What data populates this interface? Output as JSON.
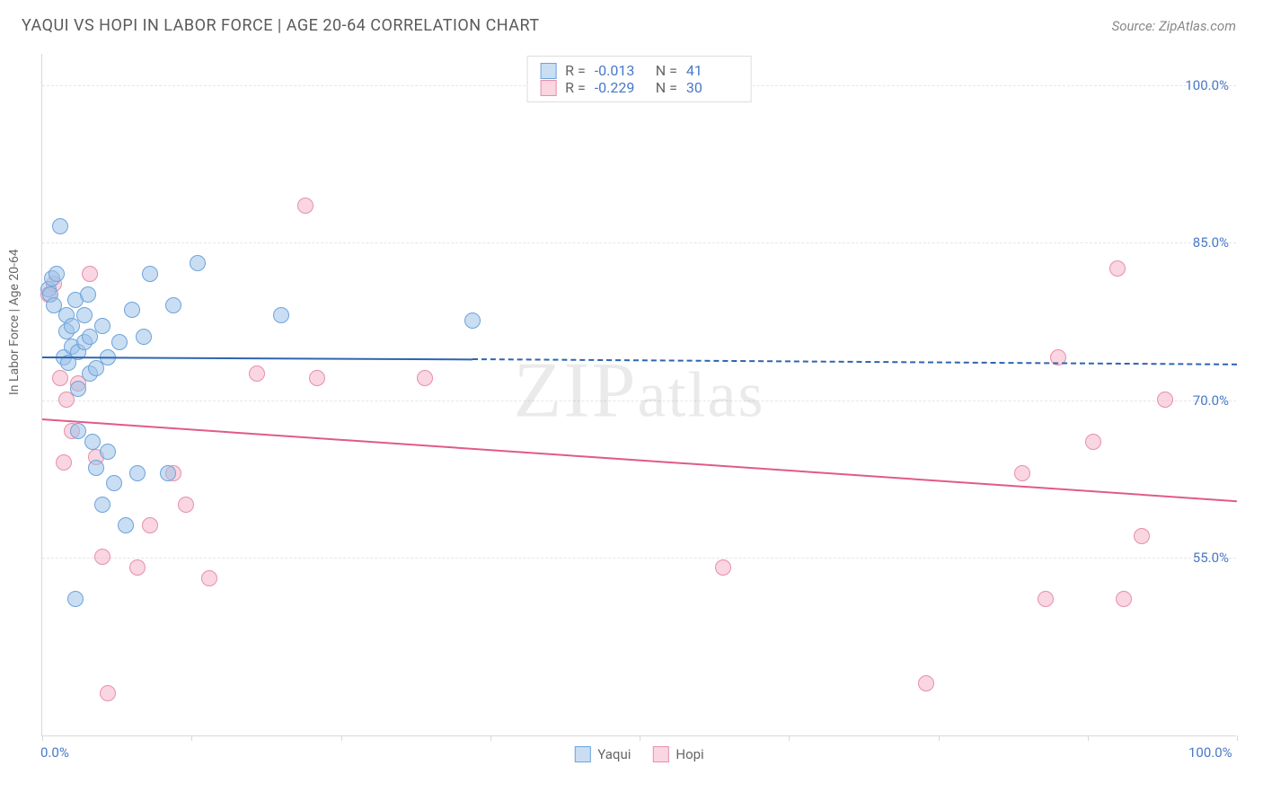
{
  "header": {
    "title": "YAQUI VS HOPI IN LABOR FORCE | AGE 20-64 CORRELATION CHART",
    "source": "Source: ZipAtlas.com"
  },
  "chart": {
    "type": "scatter",
    "ylabel": "In Labor Force | Age 20-64",
    "watermark": "ZIPatlas",
    "background_color": "#ffffff",
    "grid_color": "#e6e6e6",
    "axis_color": "#d8d8d8",
    "tick_label_color": "#4878c8",
    "xlim": [
      0,
      100
    ],
    "ylim": [
      38,
      103
    ],
    "xtick_positions": [
      0,
      12.5,
      25,
      37.5,
      50,
      62.5,
      75,
      87.5,
      100
    ],
    "xtick_labels": {
      "0": "0.0%",
      "100": "100.0%"
    },
    "ytick_positions": [
      55,
      70,
      85,
      100
    ],
    "ytick_labels": {
      "55": "55.0%",
      "70": "70.0%",
      "85": "85.0%",
      "100": "100.0%"
    },
    "series": {
      "yaqui": {
        "label": "Yaqui",
        "fill": "rgba(157,195,234,0.55)",
        "stroke": "#6ea3db",
        "line_color": "#2e65b0",
        "r_value": "-0.013",
        "n_value": "41",
        "marker_radius": 9,
        "trend": {
          "x1": 0,
          "y1": 74.2,
          "x2_solid": 36,
          "y2_solid": 74.0,
          "x2": 100,
          "y2": 73.5
        },
        "points": [
          [
            0.5,
            80.5
          ],
          [
            0.7,
            80
          ],
          [
            0.8,
            81.5
          ],
          [
            1,
            79
          ],
          [
            1.2,
            82
          ],
          [
            1.5,
            86.5
          ],
          [
            1.8,
            74
          ],
          [
            2,
            76.5
          ],
          [
            2,
            78
          ],
          [
            2.2,
            73.5
          ],
          [
            2.5,
            77
          ],
          [
            2.5,
            75
          ],
          [
            2.8,
            79.5
          ],
          [
            3,
            74.5
          ],
          [
            3,
            71
          ],
          [
            3,
            67
          ],
          [
            3.5,
            78
          ],
          [
            3.5,
            75.5
          ],
          [
            3.8,
            80
          ],
          [
            4,
            76
          ],
          [
            4,
            72.5
          ],
          [
            4.2,
            66
          ],
          [
            4.5,
            73
          ],
          [
            4.5,
            63.5
          ],
          [
            5,
            77
          ],
          [
            5,
            60
          ],
          [
            5.5,
            74
          ],
          [
            5.5,
            65
          ],
          [
            6,
            62
          ],
          [
            6.5,
            75.5
          ],
          [
            7,
            58
          ],
          [
            7.5,
            78.5
          ],
          [
            8,
            63
          ],
          [
            8.5,
            76
          ],
          [
            9,
            82
          ],
          [
            10.5,
            63
          ],
          [
            11,
            79
          ],
          [
            13,
            83
          ],
          [
            20,
            78
          ],
          [
            2.8,
            51
          ],
          [
            36,
            77.5
          ]
        ]
      },
      "hopi": {
        "label": "Hopi",
        "fill": "rgba(244,180,200,0.55)",
        "stroke": "#e88fa8",
        "line_color": "#e05a8a",
        "r_value": "-0.229",
        "n_value": "30",
        "marker_radius": 9,
        "trend": {
          "x1": 0,
          "y1": 68.3,
          "x2_solid": 100,
          "y2_solid": 60.5,
          "x2": 100,
          "y2": 60.5
        },
        "points": [
          [
            0.5,
            80
          ],
          [
            1,
            81
          ],
          [
            1.5,
            72
          ],
          [
            1.8,
            64
          ],
          [
            2,
            70
          ],
          [
            2.5,
            67
          ],
          [
            3,
            71.5
          ],
          [
            4,
            82
          ],
          [
            4.5,
            64.5
          ],
          [
            5,
            55
          ],
          [
            5.5,
            42
          ],
          [
            8,
            54
          ],
          [
            9,
            58
          ],
          [
            11,
            63
          ],
          [
            12,
            60
          ],
          [
            14,
            53
          ],
          [
            18,
            72.5
          ],
          [
            22,
            88.5
          ],
          [
            23,
            72
          ],
          [
            32,
            72
          ],
          [
            57,
            54
          ],
          [
            74,
            43
          ],
          [
            82,
            63
          ],
          [
            84,
            51
          ],
          [
            85,
            74
          ],
          [
            88,
            66
          ],
          [
            90,
            82.5
          ],
          [
            90.5,
            51
          ],
          [
            92,
            57
          ],
          [
            94,
            70
          ]
        ]
      }
    }
  }
}
